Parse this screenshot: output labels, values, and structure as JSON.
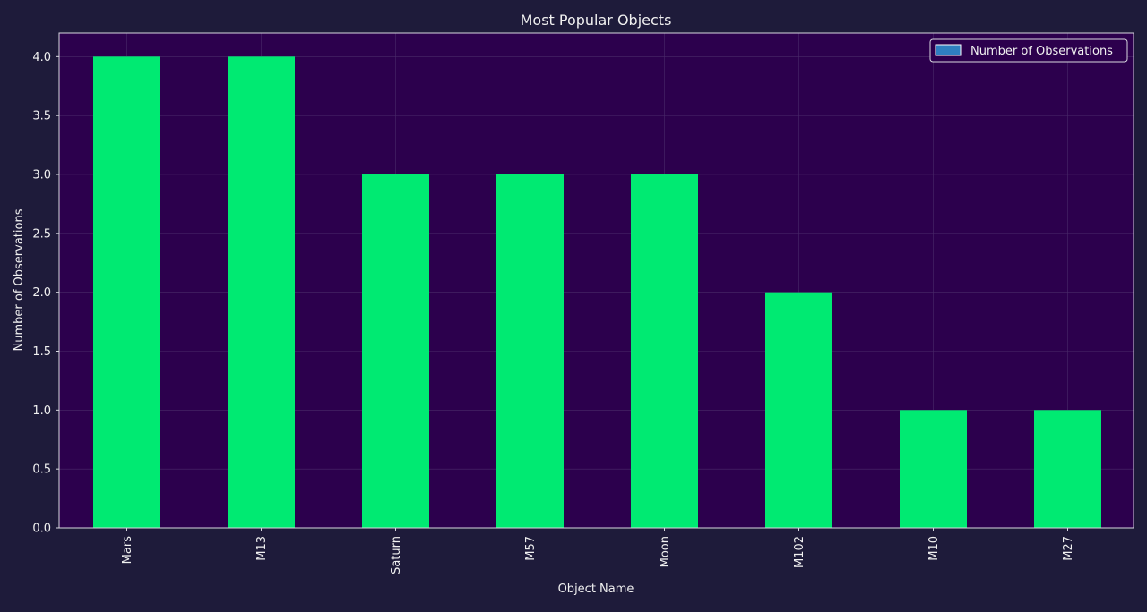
{
  "chart_data": {
    "type": "bar",
    "title": "Most Popular Objects",
    "xlabel": "Object Name",
    "ylabel": "Number of Observations",
    "categories": [
      "Mars",
      "M13",
      "Saturn",
      "M57",
      "Moon",
      "M102",
      "M10",
      "M27"
    ],
    "series": [
      {
        "name": "Number of Observations",
        "values": [
          4,
          4,
          3,
          3,
          3,
          2,
          1,
          1
        ]
      }
    ],
    "ylim": [
      0,
      4.2
    ],
    "yticks": [
      "0.0",
      "0.5",
      "1.0",
      "1.5",
      "2.0",
      "2.5",
      "3.0",
      "3.5",
      "4.0"
    ],
    "ytick_values": [
      0,
      0.5,
      1,
      1.5,
      2,
      2.5,
      3,
      3.5,
      4
    ],
    "grid": true,
    "legend_position": "top-right",
    "colors": {
      "bar": "#00ea72",
      "legend_swatch": "#2f7fc1",
      "plot_background": "#2c004d",
      "figure_background": "#1e1b3a",
      "text": "#f0f0f0",
      "grid": "#4a2a6a"
    }
  }
}
